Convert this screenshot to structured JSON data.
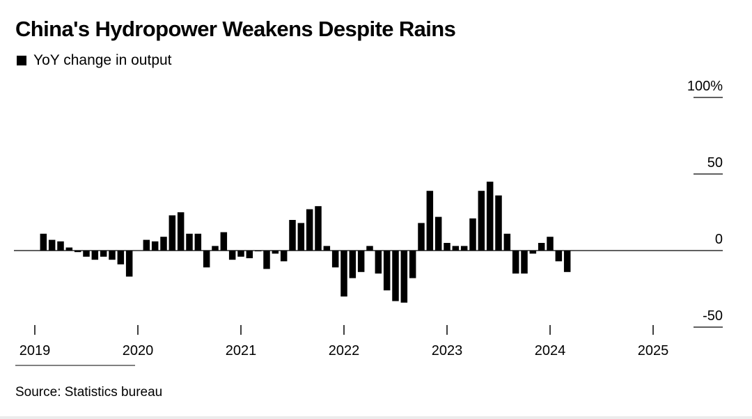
{
  "title": "China's Hydropower Weakens Despite Rains",
  "legend": {
    "label": "YoY change in output",
    "color": "#000000"
  },
  "source": "Source: Statistics bureau",
  "chart_data": {
    "type": "bar",
    "title": "China's Hydropower Weakens Despite Rains",
    "ylabel": "",
    "xlabel": "",
    "ylim": [
      -50,
      100
    ],
    "y_ticks": [
      {
        "value": 100,
        "label": "100%"
      },
      {
        "value": 50,
        "label": "50"
      },
      {
        "value": 0,
        "label": "0"
      },
      {
        "value": -50,
        "label": "-50"
      }
    ],
    "x_ticks": [
      "2019",
      "2020",
      "2021",
      "2022",
      "2023",
      "2024",
      "2025"
    ],
    "series": [
      {
        "name": "YoY change in output",
        "color": "#000000",
        "points": [
          {
            "date": "2019-02",
            "value": 11
          },
          {
            "date": "2019-03",
            "value": 7
          },
          {
            "date": "2019-04",
            "value": 6
          },
          {
            "date": "2019-05",
            "value": 2
          },
          {
            "date": "2019-06",
            "value": -1
          },
          {
            "date": "2019-07",
            "value": -4
          },
          {
            "date": "2019-08",
            "value": -6
          },
          {
            "date": "2019-09",
            "value": -4
          },
          {
            "date": "2019-10",
            "value": -6
          },
          {
            "date": "2019-11",
            "value": -9
          },
          {
            "date": "2019-12",
            "value": -17
          },
          {
            "date": "2020-02",
            "value": 7
          },
          {
            "date": "2020-03",
            "value": 6
          },
          {
            "date": "2020-04",
            "value": 9
          },
          {
            "date": "2020-05",
            "value": 23
          },
          {
            "date": "2020-06",
            "value": 25
          },
          {
            "date": "2020-07",
            "value": 11
          },
          {
            "date": "2020-08",
            "value": 11
          },
          {
            "date": "2020-09",
            "value": -11
          },
          {
            "date": "2020-10",
            "value": 3
          },
          {
            "date": "2020-11",
            "value": 12
          },
          {
            "date": "2020-12",
            "value": -6
          },
          {
            "date": "2021-01",
            "value": -4
          },
          {
            "date": "2021-02",
            "value": -5
          },
          {
            "date": "2021-03",
            "value": -0.5
          },
          {
            "date": "2021-04",
            "value": -12
          },
          {
            "date": "2021-05",
            "value": -2
          },
          {
            "date": "2021-06",
            "value": -7
          },
          {
            "date": "2021-07",
            "value": 20
          },
          {
            "date": "2021-08",
            "value": 18
          },
          {
            "date": "2021-09",
            "value": 27
          },
          {
            "date": "2021-10",
            "value": 29
          },
          {
            "date": "2021-11",
            "value": 3
          },
          {
            "date": "2021-12",
            "value": -11
          },
          {
            "date": "2022-01",
            "value": -30
          },
          {
            "date": "2022-02",
            "value": -18
          },
          {
            "date": "2022-03",
            "value": -14
          },
          {
            "date": "2022-04",
            "value": 3
          },
          {
            "date": "2022-05",
            "value": -15
          },
          {
            "date": "2022-06",
            "value": -26
          },
          {
            "date": "2022-07",
            "value": -33
          },
          {
            "date": "2022-08",
            "value": -34
          },
          {
            "date": "2022-09",
            "value": -18
          },
          {
            "date": "2022-10",
            "value": 18
          },
          {
            "date": "2022-11",
            "value": 39
          },
          {
            "date": "2022-12",
            "value": 22
          },
          {
            "date": "2023-01",
            "value": 5
          },
          {
            "date": "2023-02",
            "value": 3
          },
          {
            "date": "2023-03",
            "value": 3
          },
          {
            "date": "2023-04",
            "value": 21
          },
          {
            "date": "2023-05",
            "value": 39
          },
          {
            "date": "2023-06",
            "value": 45
          },
          {
            "date": "2023-07",
            "value": 36
          },
          {
            "date": "2023-08",
            "value": 11
          },
          {
            "date": "2023-09",
            "value": -15
          },
          {
            "date": "2023-10",
            "value": -15
          },
          {
            "date": "2023-11",
            "value": -2
          },
          {
            "date": "2023-12",
            "value": 5
          },
          {
            "date": "2024-01",
            "value": 9
          },
          {
            "date": "2024-02",
            "value": -7
          },
          {
            "date": "2024-03",
            "value": -14
          }
        ]
      }
    ],
    "grid": false,
    "legend_position": "top-left"
  }
}
